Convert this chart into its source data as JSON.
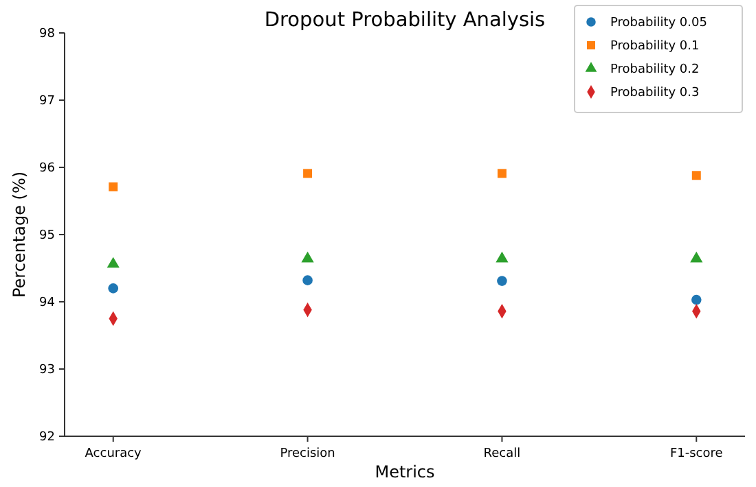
{
  "chart_data": {
    "type": "scatter",
    "title": "Dropout Probability Analysis",
    "xlabel": "Metrics",
    "ylabel": "Percentage (%)",
    "categories": [
      "Accuracy",
      "Precision",
      "Recall",
      "F1-score"
    ],
    "series": [
      {
        "name": "Probability 0.05",
        "color": "#1f77b4",
        "marker": "circle",
        "values": [
          94.2,
          94.32,
          94.31,
          94.03
        ]
      },
      {
        "name": "Probability 0.1",
        "color": "#ff7f0e",
        "marker": "square",
        "values": [
          95.71,
          95.91,
          95.91,
          95.88
        ]
      },
      {
        "name": "Probability 0.2",
        "color": "#2ca02c",
        "marker": "triangle",
        "values": [
          94.56,
          94.64,
          94.64,
          94.64
        ]
      },
      {
        "name": "Probability 0.3",
        "color": "#d62728",
        "marker": "diamond",
        "values": [
          93.75,
          93.88,
          93.86,
          93.86
        ]
      }
    ],
    "ylim": [
      92,
      98
    ],
    "yticks": [
      92,
      93,
      94,
      95,
      96,
      97,
      98
    ],
    "grid": false,
    "legend": "top right"
  }
}
